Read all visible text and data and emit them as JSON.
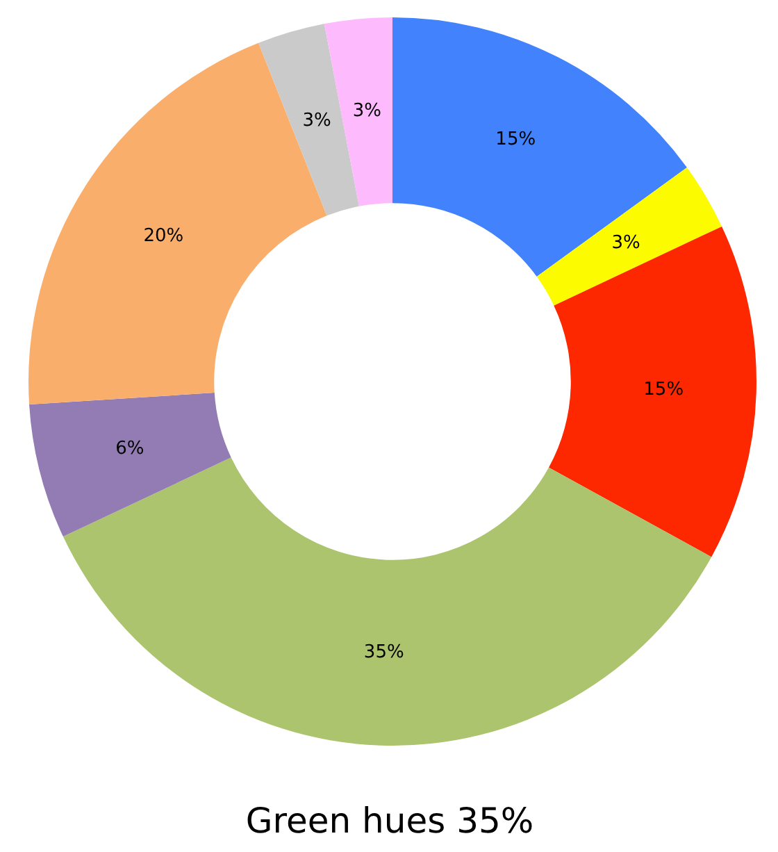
{
  "chart_data": {
    "type": "donut",
    "title": "Green hues 35%",
    "categories": [
      null,
      null,
      null,
      null,
      null,
      null,
      null,
      null
    ],
    "values": [
      15,
      3,
      15,
      35,
      6,
      20,
      3,
      3
    ],
    "colors": [
      "#4282fc",
      "#fdfb00",
      "#fd2700",
      "#abc46d",
      "#937bb3",
      "#f9ae6c",
      "#cacaca",
      "#fdbafd"
    ],
    "value_labels": [
      "15%",
      "3%",
      "15%",
      "35%",
      "6%",
      "20%",
      "3%",
      "3%"
    ]
  }
}
